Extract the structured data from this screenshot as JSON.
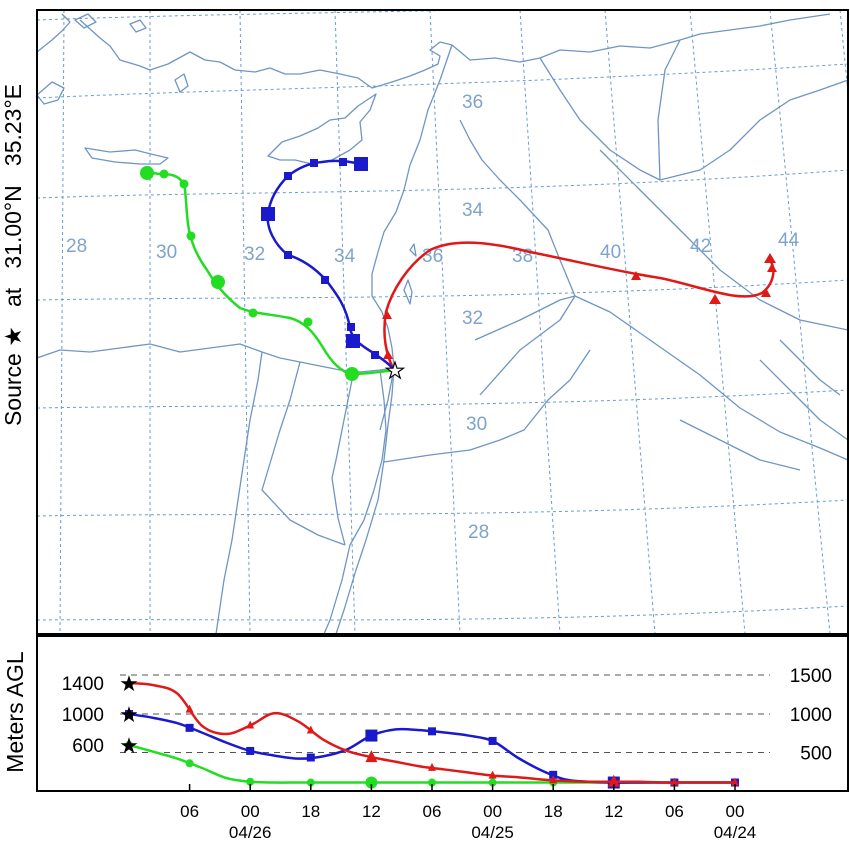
{
  "side_label": {
    "source_text": "Source",
    "star_symbol": "★",
    "at_text": "at",
    "latitude": "31.00°N",
    "longitude": "35.23°E"
  },
  "vertical_label": "Meters AGL",
  "map": {
    "latitude_labels": [
      "36",
      "34",
      "32",
      "30",
      "28"
    ],
    "longitude_labels": [
      "28",
      "30",
      "32",
      "34",
      "36",
      "38",
      "40",
      "42",
      "44"
    ],
    "grid_color": "#6b9bd1",
    "coast_color": "#6f95c4",
    "label_color": "#7ea3cc"
  },
  "chart_data": {
    "type": "line",
    "title": "",
    "ylabel": "Meters AGL",
    "y_ticks_left": [
      "1400",
      "1000",
      "600"
    ],
    "y_ticks_right": [
      "1500",
      "1000",
      "500"
    ],
    "x_tick_labels": [
      "06",
      "00",
      "18",
      "12",
      "06",
      "00",
      "18",
      "12",
      "06",
      "00"
    ],
    "date_labels": [
      "04/26",
      "04/25",
      "04/24"
    ],
    "x_hours_before_start": [
      6,
      12,
      18,
      24,
      30,
      36,
      42,
      48,
      54,
      60
    ],
    "series": [
      {
        "color": "#e01818",
        "marker": "triangle",
        "start_height": 1400,
        "heights": [
          1370,
          1260,
          850,
          740,
          850,
          1010,
          900,
          670,
          520,
          440,
          380,
          320,
          280,
          240,
          200,
          180,
          150,
          130,
          120,
          120,
          120,
          110,
          110,
          110,
          110
        ]
      },
      {
        "color": "#1a1acc",
        "marker": "square",
        "start_height": 1000,
        "heights": [
          950,
          880,
          760,
          630,
          520,
          460,
          420,
          450,
          540,
          720,
          800,
          790,
          760,
          720,
          650,
          440,
          270,
          150,
          120,
          110,
          110,
          110,
          110,
          110,
          110
        ]
      },
      {
        "color": "#22dd22",
        "marker": "circle",
        "start_height": 600,
        "heights": [
          510,
          420,
          300,
          170,
          120,
          110,
          110,
          110,
          110,
          110,
          110,
          110,
          110,
          110,
          110,
          110,
          110,
          110,
          110,
          110,
          110,
          110,
          110,
          110,
          110
        ]
      }
    ]
  }
}
